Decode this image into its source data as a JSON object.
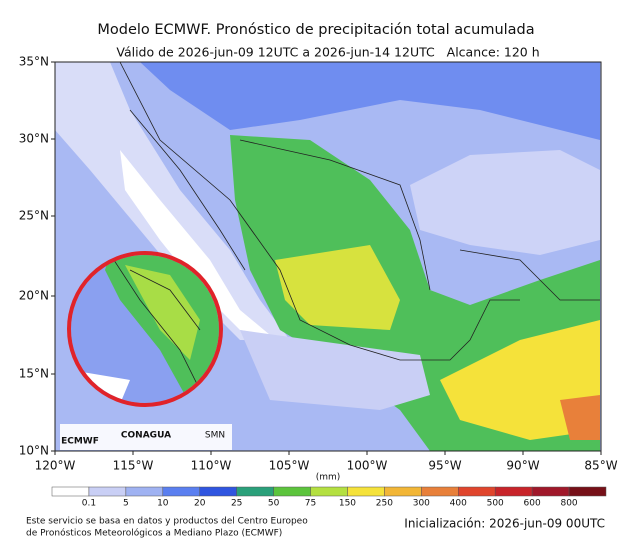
{
  "header": {
    "title": "Modelo ECMWF. Pronóstico de precipitación total acumulada",
    "subtitle": "Válido de 2026-jun-09 12UTC a 2026-jun-14 12UTC   Alcance: 120 h"
  },
  "axes": {
    "lat_labels": [
      "35°N",
      "30°N",
      "25°N",
      "20°N",
      "15°N",
      "10°N"
    ],
    "lon_labels": [
      "120°W",
      "115°W",
      "110°W",
      "105°W",
      "100°W",
      "95°W",
      "90°W",
      "85°W"
    ]
  },
  "logos": [
    "ECMWF",
    "CONAGUA",
    "SMN"
  ],
  "colorbar": {
    "unit": "(mm)",
    "labels": [
      "0.1",
      "5",
      "10",
      "20",
      "25",
      "50",
      "75",
      "150",
      "250",
      "300",
      "400",
      "500",
      "600",
      "800"
    ],
    "colors": [
      "#ffffff",
      "#c9cff5",
      "#9fb2f2",
      "#5a7ff0",
      "#2f55e0",
      "#2aa07a",
      "#5cc43c",
      "#b4e040",
      "#f5e23a",
      "#f2b636",
      "#e8803a",
      "#e0452c",
      "#c8242a",
      "#a0182a",
      "#761018"
    ]
  },
  "footer": {
    "left": [
      "Este servicio se basa en datos y productos del Centro Europeo",
      "de Pronósticos Meteorológicos a Mediano Plazo (ECMWF)"
    ],
    "right": "Inicialización: 2026-jun-09 00UTC"
  }
}
